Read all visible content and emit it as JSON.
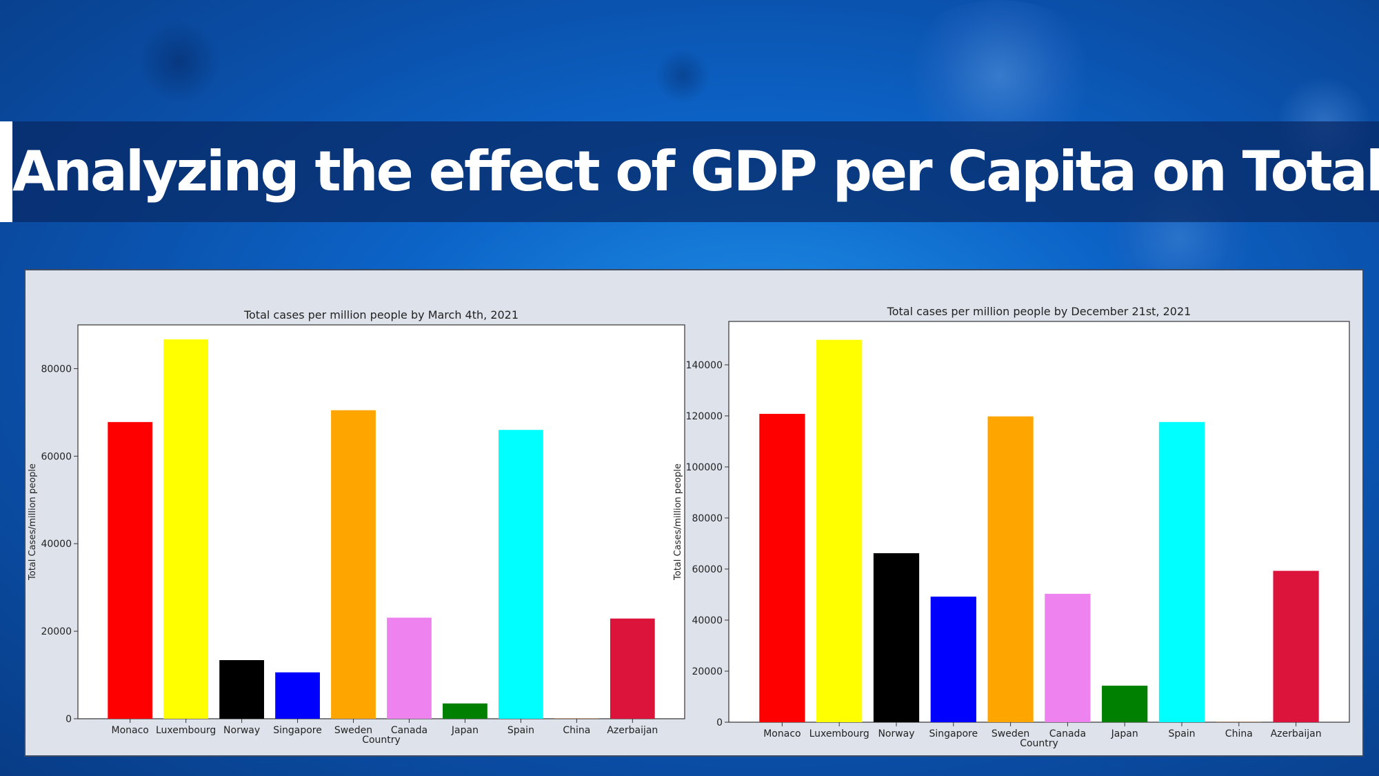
{
  "slide": {
    "title": "Analyzing the effect of GDP per Capita on Total Cases"
  },
  "chart_data": [
    {
      "type": "bar",
      "title": "Total cases per million people by March 4th, 2021",
      "xlabel": "Country",
      "ylabel": "Total Cases/million people",
      "categories": [
        "Monaco",
        "Luxembourg",
        "Norway",
        "Singapore",
        "Sweden",
        "Canada",
        "Japan",
        "Spain",
        "China",
        "Azerbaijan"
      ],
      "values": [
        67800,
        86700,
        13400,
        10600,
        70500,
        23100,
        3500,
        66000,
        63,
        22900
      ],
      "colors": [
        "#ff0000",
        "#ffff00",
        "#000000",
        "#0000ff",
        "#ffa500",
        "#ee82ee",
        "#008000",
        "#00ffff",
        "#d2691e",
        "#dc143c"
      ],
      "ylim": [
        0,
        90000
      ],
      "yticks": [
        0,
        20000,
        40000,
        60000,
        80000
      ],
      "grid": false
    },
    {
      "type": "bar",
      "title": "Total cases per million people by December 21st, 2021",
      "xlabel": "Country",
      "ylabel": "Total Cases/million people",
      "categories": [
        "Monaco",
        "Luxembourg",
        "Norway",
        "Singapore",
        "Sweden",
        "Canada",
        "Japan",
        "Spain",
        "China",
        "Azerbaijan"
      ],
      "values": [
        120800,
        149800,
        66200,
        49200,
        119800,
        50300,
        14300,
        117600,
        70,
        59300
      ],
      "colors": [
        "#ff0000",
        "#ffff00",
        "#000000",
        "#0000ff",
        "#ffa500",
        "#ee82ee",
        "#008000",
        "#00ffff",
        "#d2691e",
        "#dc143c"
      ],
      "ylim": [
        0,
        157000
      ],
      "yticks": [
        0,
        20000,
        40000,
        60000,
        80000,
        100000,
        120000,
        140000
      ],
      "grid": false
    }
  ]
}
